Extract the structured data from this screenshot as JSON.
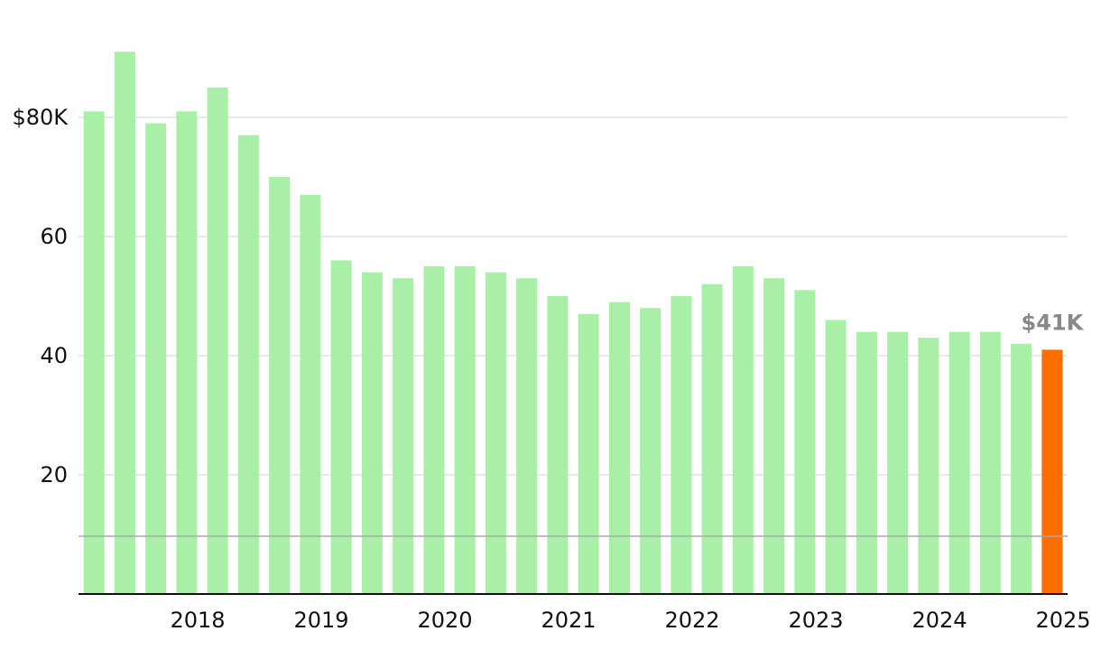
{
  "chart_data": {
    "type": "bar",
    "values": [
      81,
      91,
      79,
      81,
      85,
      77,
      70,
      67,
      56,
      54,
      53,
      55,
      55,
      54,
      53,
      50,
      47,
      49,
      48,
      50,
      52,
      55,
      53,
      51,
      46,
      44,
      44,
      43,
      44,
      44,
      42,
      41
    ],
    "value_labels": [
      null,
      null,
      null,
      null,
      null,
      null,
      null,
      null,
      null,
      null,
      null,
      null,
      null,
      null,
      null,
      null,
      null,
      null,
      null,
      null,
      null,
      null,
      null,
      null,
      null,
      null,
      null,
      null,
      null,
      null,
      null,
      "$41K"
    ],
    "colors": [
      "#a8f0a6",
      "#a8f0a6",
      "#a8f0a6",
      "#a8f0a6",
      "#a8f0a6",
      "#a8f0a6",
      "#a8f0a6",
      "#a8f0a6",
      "#a8f0a6",
      "#a8f0a6",
      "#a8f0a6",
      "#a8f0a6",
      "#a8f0a6",
      "#a8f0a6",
      "#a8f0a6",
      "#a8f0a6",
      "#a8f0a6",
      "#a8f0a6",
      "#a8f0a6",
      "#a8f0a6",
      "#a8f0a6",
      "#a8f0a6",
      "#a8f0a6",
      "#a8f0a6",
      "#a8f0a6",
      "#a8f0a6",
      "#a8f0a6",
      "#a8f0a6",
      "#a8f0a6",
      "#a8f0a6",
      "#a8f0a6",
      "#ff6d00"
    ],
    "xticks": [
      {
        "value": 4,
        "label": "2018"
      },
      {
        "value": 8,
        "label": "2019"
      },
      {
        "value": 12,
        "label": "2020"
      },
      {
        "value": 16,
        "label": "2021"
      },
      {
        "value": 20,
        "label": "2022"
      },
      {
        "value": 24,
        "label": "2023"
      },
      {
        "value": 28,
        "label": "2024"
      },
      {
        "value": 32,
        "label": "2025"
      }
    ],
    "ylim": [
      0,
      95
    ],
    "yticks": [
      20,
      40,
      60,
      {
        "value": 80,
        "label": "$80K"
      }
    ],
    "reference_line": 9.7,
    "grid": true
  }
}
